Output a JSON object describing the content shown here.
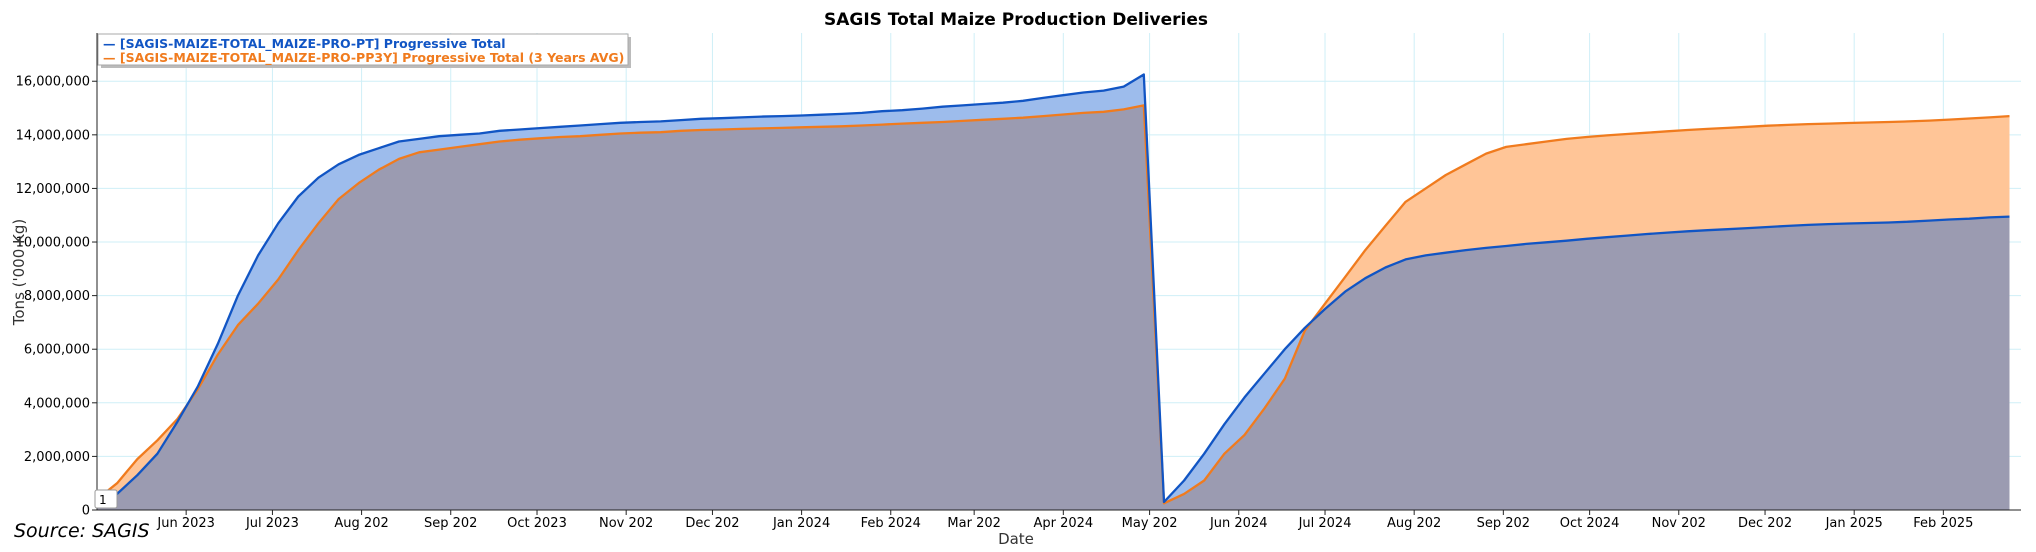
{
  "chart_data": {
    "type": "area",
    "title": "SAGIS Total Maize Production Deliveries",
    "xlabel": "Date",
    "ylabel": "Tons ('000 Kg)",
    "ylim": [
      0,
      17800000
    ],
    "xlim": [
      "2023-05-01",
      "2025-02-28"
    ],
    "grid": true,
    "legend_position": "top-left",
    "y_ticks": [
      {
        "value": 0,
        "label": "0"
      },
      {
        "value": 2000000,
        "label": "2,000,000"
      },
      {
        "value": 4000000,
        "label": "4,000,000"
      },
      {
        "value": 6000000,
        "label": "6,000,000"
      },
      {
        "value": 8000000,
        "label": "8,000,000"
      },
      {
        "value": 10000000,
        "label": "10,000,000"
      },
      {
        "value": 12000000,
        "label": "12,000,000"
      },
      {
        "value": 14000000,
        "label": "14,000,000"
      },
      {
        "value": 16000000,
        "label": "16,000,000"
      }
    ],
    "x_ticks": [
      {
        "date": "2023-06-01",
        "label": "Jun 2023"
      },
      {
        "date": "2023-07-01",
        "label": "Jul 2023"
      },
      {
        "date": "2023-08-01",
        "label": "Aug 202"
      },
      {
        "date": "2023-09-01",
        "label": "Sep 202"
      },
      {
        "date": "2023-10-01",
        "label": "Oct 2023"
      },
      {
        "date": "2023-11-01",
        "label": "Nov 202"
      },
      {
        "date": "2023-12-01",
        "label": "Dec 202"
      },
      {
        "date": "2024-01-01",
        "label": "Jan 2024"
      },
      {
        "date": "2024-02-01",
        "label": "Feb 2024"
      },
      {
        "date": "2024-03-01",
        "label": "Mar 202"
      },
      {
        "date": "2024-04-01",
        "label": "Apr 2024"
      },
      {
        "date": "2024-05-01",
        "label": "May 202"
      },
      {
        "date": "2024-06-01",
        "label": "Jun 2024"
      },
      {
        "date": "2024-07-01",
        "label": "Jul 2024"
      },
      {
        "date": "2024-08-01",
        "label": "Aug 202"
      },
      {
        "date": "2024-09-01",
        "label": "Sep 202"
      },
      {
        "date": "2024-10-01",
        "label": "Oct 2024"
      },
      {
        "date": "2024-11-01",
        "label": "Nov 202"
      },
      {
        "date": "2024-12-01",
        "label": "Dec 202"
      },
      {
        "date": "2025-01-01",
        "label": "Jan 2025"
      },
      {
        "date": "2025-02-01",
        "label": "Feb 2025"
      }
    ],
    "series": [
      {
        "name": "[SAGIS-MAIZE-TOTAL_MAIZE-PRO-PT] Progressive Total",
        "color": "#1155c4",
        "fill": "#9dbcec",
        "points": [
          [
            "2023-05-01",
            300000
          ],
          [
            "2023-05-08",
            600000
          ],
          [
            "2023-05-15",
            1300000
          ],
          [
            "2023-05-22",
            2100000
          ],
          [
            "2023-05-29",
            3300000
          ],
          [
            "2023-06-05",
            4600000
          ],
          [
            "2023-06-12",
            6200000
          ],
          [
            "2023-06-19",
            8000000
          ],
          [
            "2023-06-26",
            9500000
          ],
          [
            "2023-07-03",
            10700000
          ],
          [
            "2023-07-10",
            11700000
          ],
          [
            "2023-07-17",
            12400000
          ],
          [
            "2023-07-24",
            12900000
          ],
          [
            "2023-07-31",
            13250000
          ],
          [
            "2023-08-07",
            13500000
          ],
          [
            "2023-08-14",
            13750000
          ],
          [
            "2023-08-21",
            13850000
          ],
          [
            "2023-08-28",
            13950000
          ],
          [
            "2023-09-04",
            14000000
          ],
          [
            "2023-09-11",
            14050000
          ],
          [
            "2023-09-18",
            14150000
          ],
          [
            "2023-09-25",
            14200000
          ],
          [
            "2023-10-02",
            14250000
          ],
          [
            "2023-10-09",
            14300000
          ],
          [
            "2023-10-16",
            14350000
          ],
          [
            "2023-10-23",
            14400000
          ],
          [
            "2023-10-30",
            14450000
          ],
          [
            "2023-11-06",
            14480000
          ],
          [
            "2023-11-13",
            14500000
          ],
          [
            "2023-11-20",
            14550000
          ],
          [
            "2023-11-27",
            14600000
          ],
          [
            "2023-12-04",
            14620000
          ],
          [
            "2023-12-11",
            14650000
          ],
          [
            "2023-12-18",
            14680000
          ],
          [
            "2023-12-25",
            14700000
          ],
          [
            "2024-01-01",
            14720000
          ],
          [
            "2024-01-08",
            14750000
          ],
          [
            "2024-01-15",
            14780000
          ],
          [
            "2024-01-22",
            14820000
          ],
          [
            "2024-01-29",
            14880000
          ],
          [
            "2024-02-05",
            14920000
          ],
          [
            "2024-02-12",
            14980000
          ],
          [
            "2024-02-19",
            15050000
          ],
          [
            "2024-02-26",
            15100000
          ],
          [
            "2024-03-04",
            15150000
          ],
          [
            "2024-03-11",
            15200000
          ],
          [
            "2024-03-18",
            15270000
          ],
          [
            "2024-03-25",
            15380000
          ],
          [
            "2024-04-01",
            15480000
          ],
          [
            "2024-04-08",
            15580000
          ],
          [
            "2024-04-15",
            15650000
          ],
          [
            "2024-04-22",
            15800000
          ],
          [
            "2024-04-29",
            16250000
          ],
          [
            "2024-05-06",
            300000
          ],
          [
            "2024-05-13",
            1100000
          ],
          [
            "2024-05-20",
            2100000
          ],
          [
            "2024-05-27",
            3200000
          ],
          [
            "2024-06-03",
            4200000
          ],
          [
            "2024-06-10",
            5100000
          ],
          [
            "2024-06-17",
            6000000
          ],
          [
            "2024-06-24",
            6800000
          ],
          [
            "2024-07-01",
            7500000
          ],
          [
            "2024-07-08",
            8150000
          ],
          [
            "2024-07-15",
            8650000
          ],
          [
            "2024-07-22",
            9050000
          ],
          [
            "2024-07-29",
            9350000
          ],
          [
            "2024-08-05",
            9500000
          ],
          [
            "2024-08-12",
            9600000
          ],
          [
            "2024-08-19",
            9700000
          ],
          [
            "2024-08-26",
            9780000
          ],
          [
            "2024-09-02",
            9850000
          ],
          [
            "2024-09-09",
            9930000
          ],
          [
            "2024-09-16",
            9990000
          ],
          [
            "2024-09-23",
            10050000
          ],
          [
            "2024-09-30",
            10120000
          ],
          [
            "2024-10-07",
            10180000
          ],
          [
            "2024-10-14",
            10240000
          ],
          [
            "2024-10-21",
            10300000
          ],
          [
            "2024-10-28",
            10350000
          ],
          [
            "2024-11-04",
            10400000
          ],
          [
            "2024-11-11",
            10440000
          ],
          [
            "2024-11-18",
            10480000
          ],
          [
            "2024-11-25",
            10520000
          ],
          [
            "2024-12-02",
            10560000
          ],
          [
            "2024-12-09",
            10600000
          ],
          [
            "2024-12-16",
            10640000
          ],
          [
            "2024-12-23",
            10670000
          ],
          [
            "2024-12-30",
            10690000
          ],
          [
            "2025-01-06",
            10710000
          ],
          [
            "2025-01-13",
            10730000
          ],
          [
            "2025-01-20",
            10760000
          ],
          [
            "2025-01-27",
            10800000
          ],
          [
            "2025-02-03",
            10840000
          ],
          [
            "2025-02-10",
            10870000
          ],
          [
            "2025-02-17",
            10920000
          ],
          [
            "2025-02-24",
            10950000
          ]
        ]
      },
      {
        "name": "[SAGIS-MAIZE-TOTAL_MAIZE-PRO-PP3Y] Progressive Total (3 Years AVG)",
        "color": "#f07b1e",
        "fill": "#ffc597",
        "points": [
          [
            "2023-05-01",
            400000
          ],
          [
            "2023-05-08",
            1000000
          ],
          [
            "2023-05-15",
            1900000
          ],
          [
            "2023-05-22",
            2600000
          ],
          [
            "2023-05-29",
            3400000
          ],
          [
            "2023-06-05",
            4500000
          ],
          [
            "2023-06-12",
            5800000
          ],
          [
            "2023-06-19",
            6900000
          ],
          [
            "2023-06-26",
            7700000
          ],
          [
            "2023-07-03",
            8600000
          ],
          [
            "2023-07-10",
            9700000
          ],
          [
            "2023-07-17",
            10700000
          ],
          [
            "2023-07-24",
            11600000
          ],
          [
            "2023-07-31",
            12200000
          ],
          [
            "2023-08-07",
            12700000
          ],
          [
            "2023-08-14",
            13100000
          ],
          [
            "2023-08-21",
            13350000
          ],
          [
            "2023-08-28",
            13450000
          ],
          [
            "2023-09-04",
            13550000
          ],
          [
            "2023-09-11",
            13650000
          ],
          [
            "2023-09-18",
            13750000
          ],
          [
            "2023-09-25",
            13820000
          ],
          [
            "2023-10-02",
            13870000
          ],
          [
            "2023-10-09",
            13920000
          ],
          [
            "2023-10-16",
            13950000
          ],
          [
            "2023-10-23",
            14000000
          ],
          [
            "2023-10-30",
            14050000
          ],
          [
            "2023-11-06",
            14080000
          ],
          [
            "2023-11-13",
            14100000
          ],
          [
            "2023-11-20",
            14150000
          ],
          [
            "2023-11-27",
            14180000
          ],
          [
            "2023-12-04",
            14200000
          ],
          [
            "2023-12-11",
            14220000
          ],
          [
            "2023-12-18",
            14240000
          ],
          [
            "2023-12-25",
            14260000
          ],
          [
            "2024-01-01",
            14280000
          ],
          [
            "2024-01-08",
            14300000
          ],
          [
            "2024-01-15",
            14320000
          ],
          [
            "2024-01-22",
            14350000
          ],
          [
            "2024-01-29",
            14380000
          ],
          [
            "2024-02-05",
            14420000
          ],
          [
            "2024-02-12",
            14450000
          ],
          [
            "2024-02-19",
            14480000
          ],
          [
            "2024-02-26",
            14520000
          ],
          [
            "2024-03-04",
            14560000
          ],
          [
            "2024-03-11",
            14600000
          ],
          [
            "2024-03-18",
            14640000
          ],
          [
            "2024-03-25",
            14700000
          ],
          [
            "2024-04-01",
            14760000
          ],
          [
            "2024-04-08",
            14820000
          ],
          [
            "2024-04-15",
            14860000
          ],
          [
            "2024-04-22",
            14950000
          ],
          [
            "2024-04-29",
            15100000
          ],
          [
            "2024-05-06",
            250000
          ],
          [
            "2024-05-13",
            600000
          ],
          [
            "2024-05-20",
            1100000
          ],
          [
            "2024-05-27",
            2100000
          ],
          [
            "2024-06-03",
            2800000
          ],
          [
            "2024-06-10",
            3800000
          ],
          [
            "2024-06-17",
            4900000
          ],
          [
            "2024-06-24",
            6700000
          ],
          [
            "2024-07-01",
            7700000
          ],
          [
            "2024-07-08",
            8700000
          ],
          [
            "2024-07-15",
            9700000
          ],
          [
            "2024-07-22",
            10600000
          ],
          [
            "2024-07-29",
            11500000
          ],
          [
            "2024-08-05",
            12000000
          ],
          [
            "2024-08-12",
            12500000
          ],
          [
            "2024-08-19",
            12900000
          ],
          [
            "2024-08-26",
            13300000
          ],
          [
            "2024-09-02",
            13550000
          ],
          [
            "2024-09-09",
            13650000
          ],
          [
            "2024-09-16",
            13750000
          ],
          [
            "2024-09-23",
            13850000
          ],
          [
            "2024-09-30",
            13920000
          ],
          [
            "2024-10-07",
            13980000
          ],
          [
            "2024-10-14",
            14030000
          ],
          [
            "2024-10-21",
            14080000
          ],
          [
            "2024-10-28",
            14130000
          ],
          [
            "2024-11-04",
            14180000
          ],
          [
            "2024-11-11",
            14220000
          ],
          [
            "2024-11-18",
            14260000
          ],
          [
            "2024-11-25",
            14300000
          ],
          [
            "2024-12-02",
            14340000
          ],
          [
            "2024-12-09",
            14370000
          ],
          [
            "2024-12-16",
            14400000
          ],
          [
            "2024-12-23",
            14420000
          ],
          [
            "2024-12-30",
            14440000
          ],
          [
            "2025-01-06",
            14460000
          ],
          [
            "2025-01-13",
            14480000
          ],
          [
            "2025-01-20",
            14500000
          ],
          [
            "2025-01-27",
            14530000
          ],
          [
            "2025-02-03",
            14570000
          ],
          [
            "2025-02-10",
            14610000
          ],
          [
            "2025-02-17",
            14650000
          ],
          [
            "2025-02-24",
            14700000
          ]
        ]
      }
    ],
    "overlap_fill": "#9b9bb1"
  },
  "source_note": "Source: SAGIS",
  "page_box": "1"
}
